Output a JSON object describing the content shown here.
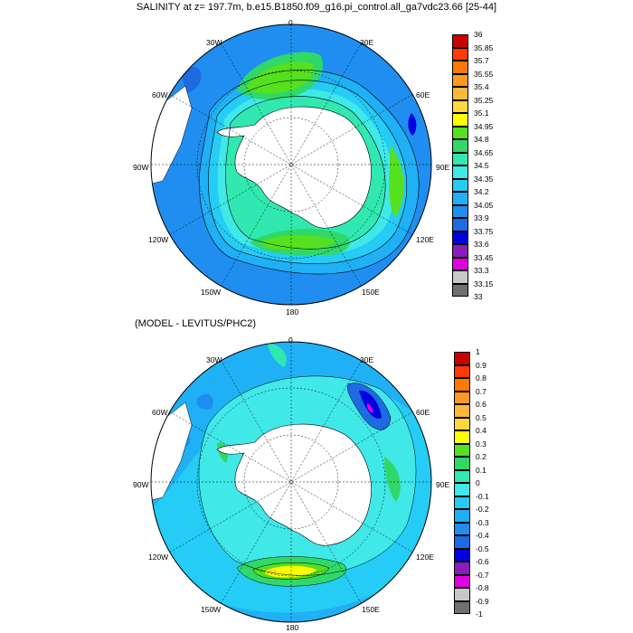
{
  "title": "SALINITY at z= 197.7m, b.e15.B1850.f09_g16.pi_control.all_ga7vdc23.66 [25-44]",
  "subtitle": "(MODEL - LEVITUS/PHC2)",
  "maps": [
    {
      "id": "salinity",
      "lon_labels": [
        "0",
        "30E",
        "60E",
        "90E",
        "120E",
        "150E",
        "180",
        "150W",
        "120W",
        "90W",
        "60W",
        "30W"
      ],
      "colorbar": {
        "labels": [
          "33",
          "33.15",
          "33.3",
          "33.45",
          "33.6",
          "33.75",
          "33.9",
          "34.05",
          "34.2",
          "34.35",
          "34.5",
          "34.65",
          "34.8",
          "34.95",
          "35.1",
          "35.25",
          "35.4",
          "35.55",
          "35.7",
          "35.85",
          "36"
        ],
        "colors": [
          "#707070",
          "#c8c8c8",
          "#e000e0",
          "#8a1cb8",
          "#0000e0",
          "#1c6be0",
          "#1f8ef0",
          "#20b0f5",
          "#25ccf5",
          "#40e8e8",
          "#30e8b0",
          "#30d868",
          "#55e020",
          "#ffff00",
          "#ffd840",
          "#ffb838",
          "#ff9a20",
          "#ff7a00",
          "#ff3a00",
          "#c80000"
        ]
      }
    },
    {
      "id": "difference",
      "lon_labels": [
        "0",
        "30E",
        "60E",
        "90E",
        "120E",
        "150E",
        "180",
        "150W",
        "120W",
        "90W",
        "60W",
        "30W"
      ],
      "colorbar": {
        "labels": [
          "-1",
          "-0.9",
          "-0.8",
          "-0.7",
          "-0.6",
          "-0.5",
          "-0.4",
          "-0.3",
          "-0.2",
          "-0.1",
          "0",
          "0.1",
          "0.2",
          "0.3",
          "0.4",
          "0.5",
          "0.6",
          "0.7",
          "0.8",
          "0.9",
          "1"
        ],
        "colors": [
          "#707070",
          "#c8c8c8",
          "#e000e0",
          "#8a1cb8",
          "#0000e0",
          "#1c6be0",
          "#1f8ef0",
          "#20b0f5",
          "#25ccf5",
          "#40e8e8",
          "#30e8b0",
          "#30d868",
          "#55e020",
          "#ffff00",
          "#ffd840",
          "#ffb838",
          "#ff9a20",
          "#ff7a00",
          "#ff3a00",
          "#c80000"
        ]
      }
    }
  ]
}
